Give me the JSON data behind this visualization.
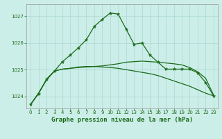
{
  "title": "Graphe pression niveau de la mer (hPa)",
  "background_color": "#cceee8",
  "grid_color": "#aad8d0",
  "line_color": "#1a6b1a",
  "xlim": [
    -0.5,
    23.5
  ],
  "ylim": [
    1023.55,
    1027.45
  ],
  "yticks": [
    1024,
    1025,
    1026,
    1027
  ],
  "xticks": [
    0,
    1,
    2,
    3,
    4,
    5,
    6,
    7,
    8,
    9,
    10,
    11,
    12,
    13,
    14,
    15,
    16,
    17,
    18,
    19,
    20,
    21,
    22,
    23
  ],
  "series_peak": [
    1023.7,
    1024.1,
    1024.65,
    1024.95,
    1025.3,
    1025.55,
    1025.82,
    1026.12,
    1026.62,
    1026.88,
    1027.12,
    1027.08,
    1026.52,
    1025.95,
    1026.0,
    1025.55,
    1025.28,
    1025.02,
    1025.02,
    1025.02,
    1025.02,
    1024.88,
    1024.52,
    1024.02
  ],
  "series_flat1": [
    1023.7,
    1024.12,
    1024.62,
    1024.95,
    1025.02,
    1025.05,
    1025.08,
    1025.1,
    1025.12,
    1025.14,
    1025.18,
    1025.22,
    1025.28,
    1025.3,
    1025.32,
    1025.3,
    1025.28,
    1025.25,
    1025.22,
    1025.18,
    1025.08,
    1024.92,
    1024.68,
    1024.05
  ],
  "series_flat2": [
    1023.7,
    1024.12,
    1024.62,
    1024.95,
    1025.02,
    1025.05,
    1025.1,
    1025.12,
    1025.12,
    1025.1,
    1025.08,
    1025.05,
    1025.0,
    1024.95,
    1024.9,
    1024.85,
    1024.78,
    1024.68,
    1024.58,
    1024.48,
    1024.38,
    1024.25,
    1024.12,
    1024.02
  ],
  "tick_fontsize": 5,
  "title_fontsize": 6.5,
  "marker_size": 3.5,
  "linewidth": 0.9
}
